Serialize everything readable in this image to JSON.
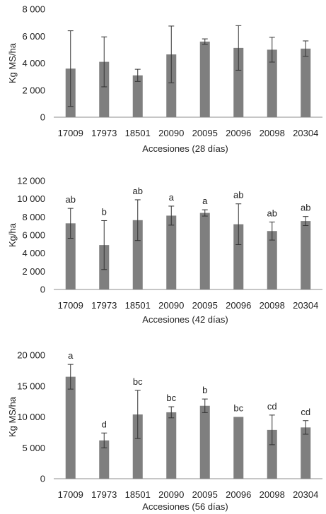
{
  "chart_data": [
    {
      "type": "bar",
      "categories": [
        "17009",
        "17973",
        "18501",
        "20090",
        "20095",
        "20096",
        "20098",
        "20304"
      ],
      "values": [
        3600,
        4100,
        3100,
        4650,
        5600,
        5130,
        5000,
        5080
      ],
      "errors": [
        2800,
        1850,
        450,
        2100,
        200,
        1650,
        920,
        570
      ],
      "letters": [
        "",
        "",
        "",
        "",
        "",
        "",
        "",
        ""
      ],
      "xlabel": "Accesiones (28 días)",
      "ylabel": "Kg MS/ha",
      "ylim": [
        0,
        8000
      ],
      "yticks": [
        0,
        2000,
        4000,
        6000,
        8000
      ],
      "ytick_labels": [
        "0",
        "2 000",
        "4 000",
        "6 000",
        "8 000"
      ],
      "grid": false
    },
    {
      "type": "bar",
      "categories": [
        "17009",
        "17973",
        "18501",
        "20090",
        "20095",
        "20096",
        "20098",
        "20304"
      ],
      "values": [
        7300,
        4900,
        7650,
        8150,
        8450,
        7200,
        6450,
        7550
      ],
      "errors": [
        1650,
        2700,
        2250,
        1050,
        350,
        2250,
        1000,
        500
      ],
      "letters": [
        "ab",
        "b",
        "ab",
        "a",
        "a",
        "ab",
        "ab",
        "ab"
      ],
      "xlabel": "Accesiones (42 días)",
      "ylabel": "Kg/ha",
      "ylim": [
        0,
        12000
      ],
      "yticks": [
        0,
        2000,
        4000,
        6000,
        8000,
        10000,
        12000
      ],
      "ytick_labels": [
        "0",
        "2 000",
        "4 000",
        "6 000",
        "8 000",
        "10 000",
        "12 000"
      ],
      "grid": false
    },
    {
      "type": "bar",
      "categories": [
        "17009",
        "17973",
        "18501",
        "20090",
        "20095",
        "20096",
        "20098",
        "20304"
      ],
      "values": [
        16500,
        6200,
        10400,
        10750,
        11800,
        10000,
        7900,
        8300
      ],
      "errors": [
        2000,
        1200,
        3900,
        900,
        1100,
        0,
        2400,
        1100
      ],
      "letters": [
        "a",
        "d",
        "bc",
        "bc",
        "b",
        "bc",
        "cd",
        "cd"
      ],
      "xlabel": "Accesiones (56 días)",
      "ylabel": "Kg MS/ha",
      "ylim": [
        0,
        20000
      ],
      "yticks": [
        0,
        5000,
        10000,
        15000,
        20000
      ],
      "ytick_labels": [
        "0",
        "5 000",
        "10 000",
        "15 000",
        "20 000"
      ],
      "grid": false
    }
  ]
}
